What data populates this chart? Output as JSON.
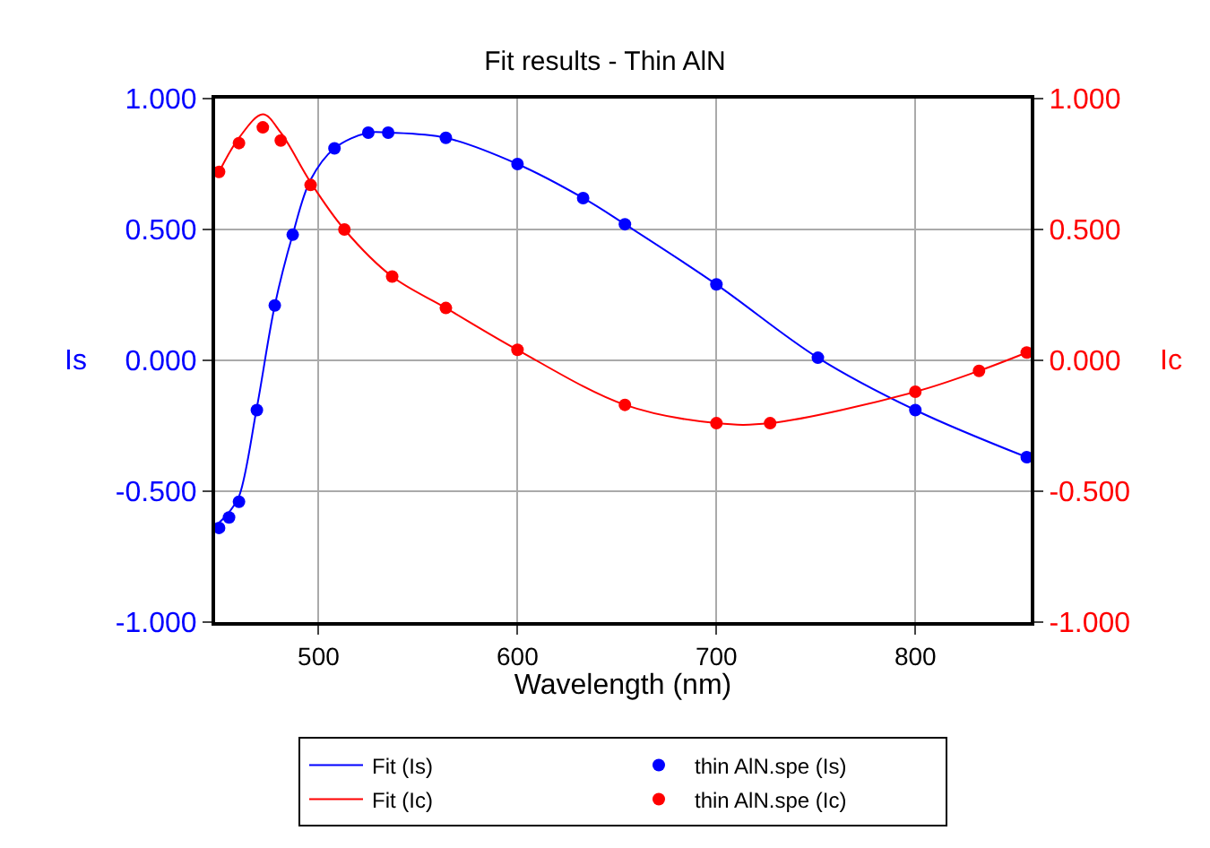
{
  "chart_data": {
    "type": "line",
    "title": "Fit results - Thin AlN",
    "xlabel": "Wavelength (nm)",
    "ylabel": "Is",
    "y2label": "Ic",
    "xlim": [
      448,
      858
    ],
    "xticks": [
      500,
      600,
      700,
      800
    ],
    "ylim": [
      -1,
      1
    ],
    "yticks": [
      {
        "value": -1,
        "label": "-1.000"
      },
      {
        "value": -0.5,
        "label": "-0.500"
      },
      {
        "value": 0,
        "label": "0.000"
      },
      {
        "value": 0.5,
        "label": "0.500"
      },
      {
        "value": 1,
        "label": "1.000"
      }
    ],
    "y2lim": [
      -1,
      1
    ],
    "y2ticks": [
      {
        "value": -1,
        "label": "-1.000"
      },
      {
        "value": -0.5,
        "label": "-0.500"
      },
      {
        "value": 0,
        "label": "0.000"
      },
      {
        "value": 0.5,
        "label": "0.500"
      },
      {
        "value": 1,
        "label": "1.000"
      }
    ],
    "grid": true,
    "legend": "bottom",
    "series": [
      {
        "name": "Fit (Is)",
        "color": "#0000ff",
        "marker": "none",
        "x": [
          450,
          455,
          460,
          469,
          478,
          487,
          496,
          508,
          525,
          535,
          564,
          600,
          633,
          654,
          700,
          751,
          800,
          856
        ],
        "values": [
          -0.62,
          -0.58,
          -0.52,
          -0.18,
          0.21,
          0.48,
          0.69,
          0.81,
          0.87,
          0.87,
          0.85,
          0.75,
          0.62,
          0.52,
          0.29,
          0.01,
          -0.19,
          -0.37
        ]
      },
      {
        "name": "thin AlN.spe (Is)",
        "type": "scatter",
        "color": "#0000ff",
        "marker": "circle",
        "x": [
          450,
          455,
          460,
          469,
          478,
          487,
          496,
          508,
          525,
          535,
          564,
          600,
          633,
          654,
          700,
          751,
          800,
          856
        ],
        "values": [
          -0.64,
          -0.6,
          -0.54,
          -0.19,
          0.21,
          0.48,
          null,
          0.81,
          0.87,
          0.87,
          0.85,
          0.75,
          0.62,
          0.52,
          0.29,
          0.01,
          -0.19,
          -0.37
        ]
      },
      {
        "name": "Fit (Ic)",
        "axis": "y2",
        "color": "#ff0000",
        "marker": "none",
        "x": [
          450,
          460,
          472,
          481,
          496,
          513,
          537,
          564,
          600,
          654,
          700,
          727,
          800,
          832,
          856
        ],
        "values": [
          0.72,
          0.85,
          0.94,
          0.87,
          0.68,
          0.5,
          0.32,
          0.2,
          0.04,
          -0.17,
          -0.24,
          -0.24,
          -0.12,
          -0.04,
          0.03
        ]
      },
      {
        "name": "thin AlN.spe (Ic)",
        "type": "scatter",
        "axis": "y2",
        "color": "#ff0000",
        "marker": "circle",
        "x": [
          450,
          460,
          472,
          481,
          496,
          513,
          537,
          564,
          600,
          654,
          700,
          727,
          800,
          832,
          856
        ],
        "values": [
          0.72,
          0.83,
          0.89,
          0.84,
          0.67,
          0.5,
          0.32,
          0.2,
          0.04,
          -0.17,
          -0.24,
          -0.24,
          -0.12,
          -0.04,
          0.03
        ]
      }
    ]
  }
}
